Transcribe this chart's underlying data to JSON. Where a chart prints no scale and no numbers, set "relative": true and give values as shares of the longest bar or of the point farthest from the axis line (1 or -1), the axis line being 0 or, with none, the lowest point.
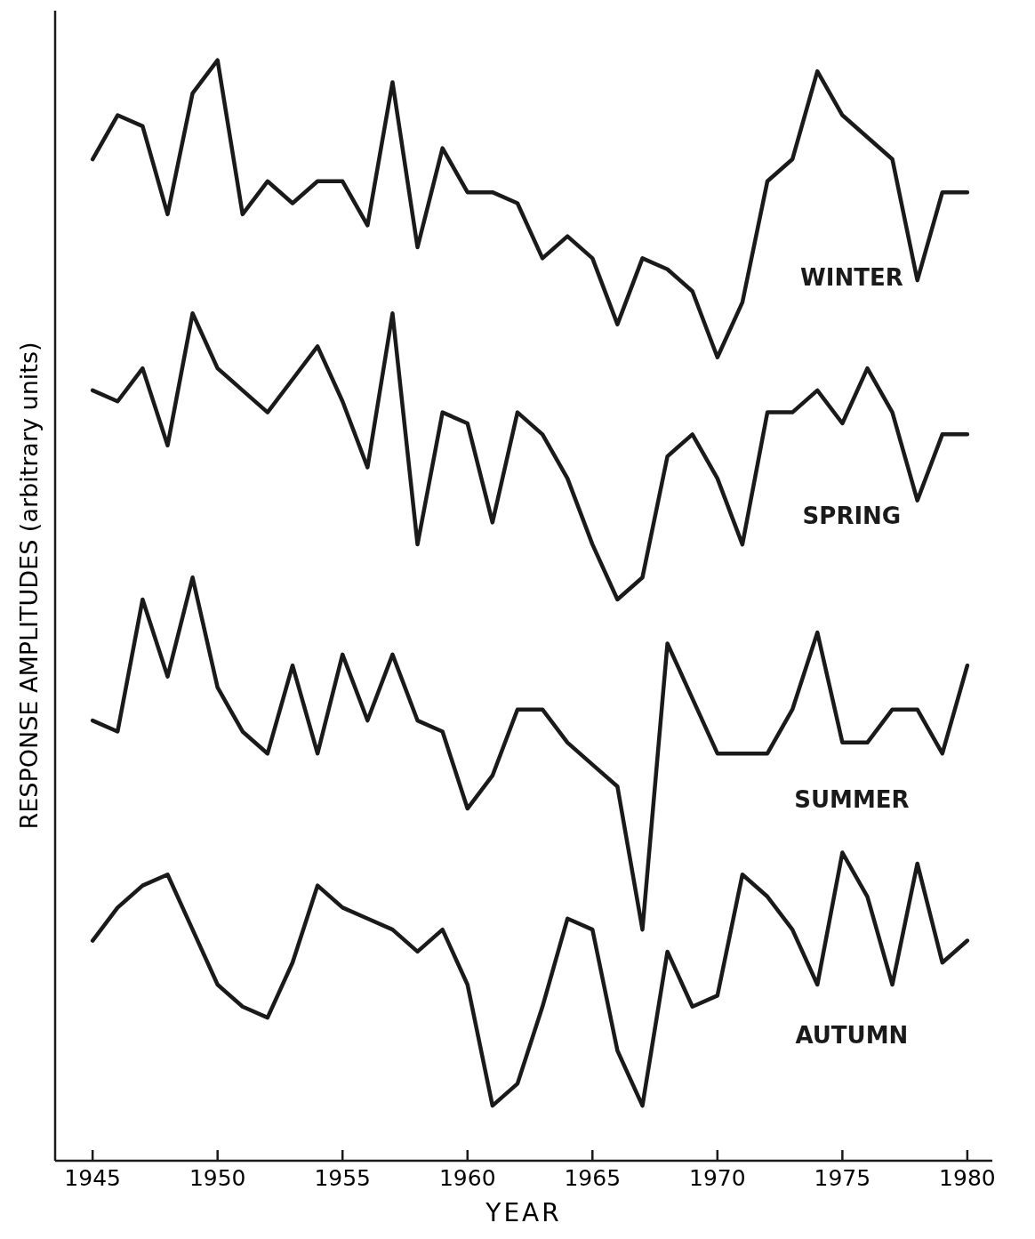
{
  "chart_data": {
    "type": "line",
    "relative": true,
    "xlabel": "YEAR",
    "ylabel": "RESPONSE AMPLITUDES (arbitrary units)",
    "tick_labels": "x",
    "xlim": [
      1943.5,
      1981
    ],
    "xticks": [
      1945,
      1950,
      1955,
      1960,
      1965,
      1970,
      1975,
      1980
    ],
    "x": [
      1945,
      1946,
      1947,
      1948,
      1949,
      1950,
      1951,
      1952,
      1953,
      1954,
      1955,
      1956,
      1957,
      1958,
      1959,
      1960,
      1961,
      1962,
      1963,
      1964,
      1965,
      1966,
      1967,
      1968,
      1969,
      1970,
      1971,
      1972,
      1973,
      1974,
      1975,
      1976,
      1977,
      1978,
      1979,
      1980
    ],
    "series": [
      {
        "name": "WINTER",
        "color": "#1a1a1a",
        "values": [
          0.91,
          0.95,
          0.94,
          0.86,
          0.97,
          1.0,
          0.86,
          0.89,
          0.87,
          0.89,
          0.89,
          0.85,
          0.98,
          0.83,
          0.92,
          0.88,
          0.88,
          0.87,
          0.82,
          0.84,
          0.82,
          0.76,
          0.82,
          0.81,
          0.79,
          0.73,
          0.78,
          0.89,
          0.91,
          0.99,
          0.95,
          0.93,
          0.91,
          0.8,
          0.88,
          0.88
        ]
      },
      {
        "name": "SPRING",
        "color": "#1a1a1a",
        "values": [
          0.7,
          0.69,
          0.72,
          0.65,
          0.77,
          0.72,
          0.7,
          0.68,
          0.71,
          0.74,
          0.69,
          0.63,
          0.77,
          0.56,
          0.68,
          0.67,
          0.58,
          0.68,
          0.66,
          0.62,
          0.56,
          0.51,
          0.53,
          0.64,
          0.66,
          0.62,
          0.56,
          0.68,
          0.68,
          0.7,
          0.67,
          0.72,
          0.68,
          0.6,
          0.66,
          0.66
        ]
      },
      {
        "name": "SUMMER",
        "color": "#1a1a1a",
        "values": [
          0.4,
          0.39,
          0.51,
          0.44,
          0.53,
          0.43,
          0.39,
          0.37,
          0.45,
          0.37,
          0.46,
          0.4,
          0.46,
          0.4,
          0.39,
          0.32,
          0.35,
          0.41,
          0.41,
          0.38,
          0.36,
          0.34,
          0.21,
          0.47,
          0.42,
          0.37,
          0.37,
          0.37,
          0.41,
          0.48,
          0.38,
          0.38,
          0.41,
          0.41,
          0.37,
          0.45
        ]
      },
      {
        "name": "AUTUMN",
        "color": "#1a1a1a",
        "values": [
          0.2,
          0.23,
          0.25,
          0.26,
          0.21,
          0.16,
          0.14,
          0.13,
          0.18,
          0.25,
          0.23,
          0.22,
          0.21,
          0.19,
          0.21,
          0.16,
          0.05,
          0.07,
          0.14,
          0.22,
          0.21,
          0.1,
          0.05,
          0.19,
          0.14,
          0.15,
          0.26,
          0.24,
          0.21,
          0.16,
          0.28,
          0.24,
          0.16,
          0.27,
          0.18,
          0.2
        ]
      }
    ]
  }
}
